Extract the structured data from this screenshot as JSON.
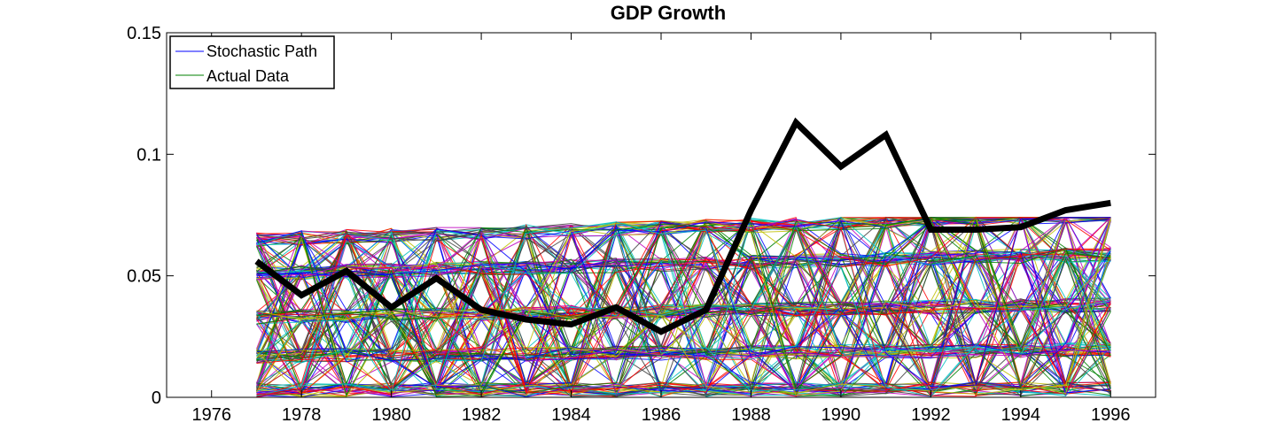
{
  "chart_data": {
    "type": "line",
    "title": "GDP Growth",
    "xlabel": "",
    "ylabel": "",
    "xlim": [
      1975,
      1997
    ],
    "ylim": [
      0,
      0.15
    ],
    "x_ticks": [
      1976,
      1978,
      1980,
      1982,
      1984,
      1986,
      1988,
      1990,
      1992,
      1994,
      1996
    ],
    "x_tick_labels": [
      "1976",
      "1978",
      "1980",
      "1982",
      "1984",
      "1986",
      "1988",
      "1990",
      "1992",
      "1994",
      "1996"
    ],
    "y_ticks": [
      0,
      0.05,
      0.1,
      0.15
    ],
    "y_tick_labels": [
      "0",
      "0.05",
      "0.1",
      "0.15"
    ],
    "grid": false,
    "legend_position": "top-left",
    "legend": [
      {
        "label": "Stochastic Path",
        "color": "#0000ff"
      },
      {
        "label": "Actual Data",
        "color": "#008000"
      }
    ],
    "x": [
      1977,
      1978,
      1979,
      1980,
      1981,
      1982,
      1983,
      1984,
      1985,
      1986,
      1987,
      1988,
      1989,
      1990,
      1991,
      1992,
      1993,
      1994,
      1995,
      1996
    ],
    "series": [
      {
        "values": [
          0.056,
          0.042,
          0.052,
          0.037,
          0.049,
          0.036,
          0.032,
          0.03,
          0.037,
          0.027,
          0.036,
          0.077,
          0.113,
          0.095,
          0.108,
          0.069,
          0.069,
          0.07,
          0.077,
          0.08
        ],
        "color": "#000000"
      }
    ],
    "stochastic_paths": {
      "count": 200,
      "x_range": [
        1977,
        1996
      ],
      "value_range": [
        0.0,
        0.074
      ],
      "levels": [
        0.003,
        0.017,
        0.033,
        0.051,
        0.065
      ],
      "colors": [
        "#0000ff",
        "#008000",
        "#ff0000",
        "#00bfbf",
        "#bf00bf",
        "#bfbf00",
        "#404040"
      ]
    }
  }
}
